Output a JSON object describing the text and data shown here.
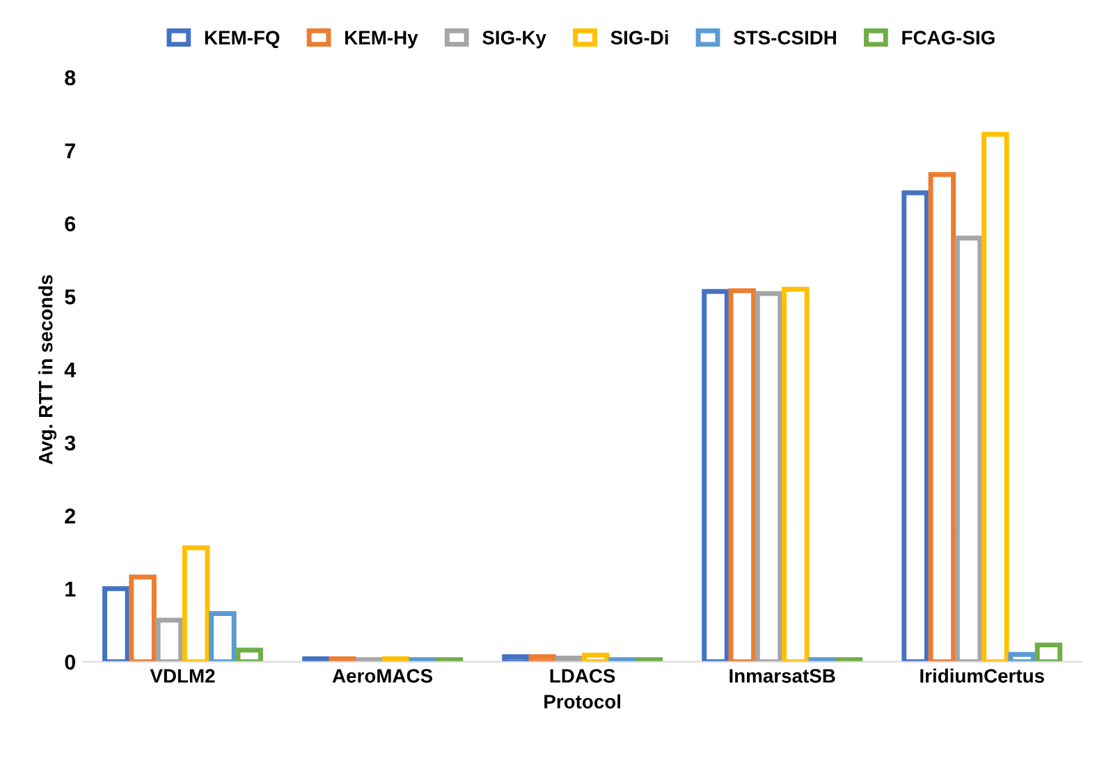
{
  "chart_data": {
    "type": "bar",
    "xlabel": "Protocol",
    "ylabel": "Avg. RTT in seconds",
    "categories": [
      "VDLM2",
      "AeroMACS",
      "LDACS",
      "InmarsatSB",
      "IridiumCertus"
    ],
    "series": [
      {
        "name": "KEM-FQ",
        "color": "#4472c4",
        "values": [
          1.0,
          0.04,
          0.07,
          5.07,
          6.42
        ]
      },
      {
        "name": "KEM-Hy",
        "color": "#ed7d31",
        "values": [
          1.16,
          0.04,
          0.07,
          5.08,
          6.67
        ]
      },
      {
        "name": "SIG-Ky",
        "color": "#a5a5a5",
        "values": [
          0.57,
          0.03,
          0.05,
          5.04,
          5.8
        ]
      },
      {
        "name": "SIG-Di",
        "color": "#ffc000",
        "values": [
          1.56,
          0.04,
          0.09,
          5.1,
          7.22
        ]
      },
      {
        "name": "STS-CSIDH",
        "color": "#5b9bd5",
        "values": [
          0.66,
          0.03,
          0.03,
          0.03,
          0.1
        ]
      },
      {
        "name": "FCAG-SIG",
        "color": "#70ad47",
        "values": [
          0.16,
          0.03,
          0.03,
          0.03,
          0.23
        ]
      }
    ],
    "ylim": [
      0,
      8
    ],
    "yticks": [
      0,
      1,
      2,
      3,
      4,
      5,
      6,
      7,
      8
    ],
    "grid": false,
    "legend": "top"
  }
}
